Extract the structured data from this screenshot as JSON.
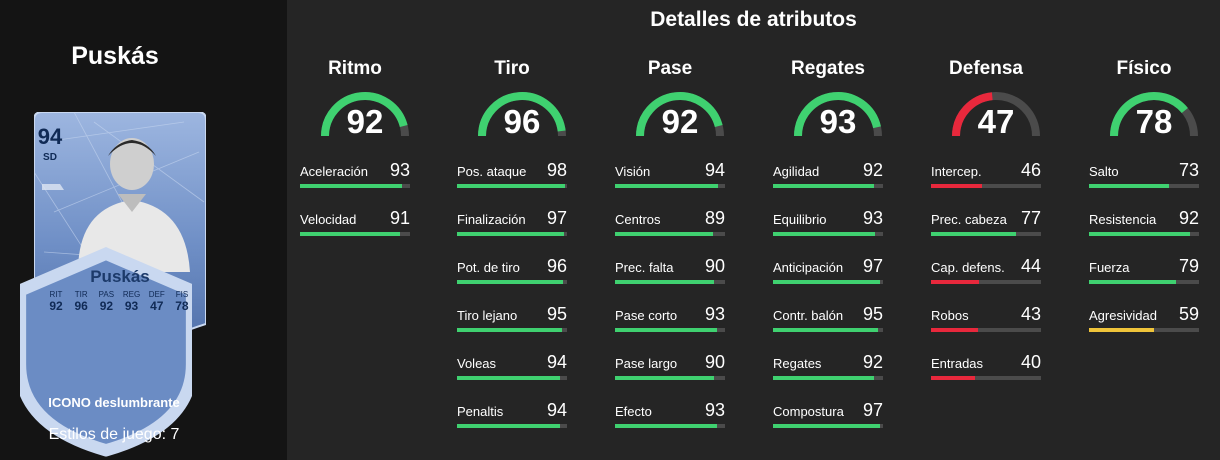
{
  "player": {
    "name": "Puskás",
    "card_rating": "94",
    "card_position": "SD",
    "card_name": "Puskás",
    "card_stats": [
      {
        "label": "RIT",
        "value": "92"
      },
      {
        "label": "TIR",
        "value": "96"
      },
      {
        "label": "PAS",
        "value": "92"
      },
      {
        "label": "REG",
        "value": "93"
      },
      {
        "label": "DEF",
        "value": "47"
      },
      {
        "label": "FIS",
        "value": "78"
      }
    ],
    "card_type": "ICONO deslumbrante",
    "play_styles": "Estilos de juego: 7"
  },
  "title": "Detalles de atributos",
  "colors": {
    "green": "#3fd170",
    "red": "#e8283c",
    "yellow": "#efc43a",
    "track": "#4b4b4b",
    "card_blue": "#7f9fd1"
  },
  "categories": [
    {
      "name": "Ritmo",
      "value": 92,
      "color": "green",
      "stats": [
        {
          "name": "Aceleración",
          "value": 93,
          "color": "green"
        },
        {
          "name": "Velocidad",
          "value": 91,
          "color": "green"
        }
      ]
    },
    {
      "name": "Tiro",
      "value": 96,
      "color": "green",
      "stats": [
        {
          "name": "Pos. ataque",
          "value": 98,
          "color": "green"
        },
        {
          "name": "Finalización",
          "value": 97,
          "color": "green"
        },
        {
          "name": "Pot. de tiro",
          "value": 96,
          "color": "green"
        },
        {
          "name": "Tiro lejano",
          "value": 95,
          "color": "green"
        },
        {
          "name": "Voleas",
          "value": 94,
          "color": "green"
        },
        {
          "name": "Penaltis",
          "value": 94,
          "color": "green"
        }
      ]
    },
    {
      "name": "Pase",
      "value": 92,
      "color": "green",
      "stats": [
        {
          "name": "Visión",
          "value": 94,
          "color": "green"
        },
        {
          "name": "Centros",
          "value": 89,
          "color": "green"
        },
        {
          "name": "Prec. falta",
          "value": 90,
          "color": "green"
        },
        {
          "name": "Pase corto",
          "value": 93,
          "color": "green"
        },
        {
          "name": "Pase largo",
          "value": 90,
          "color": "green"
        },
        {
          "name": "Efecto",
          "value": 93,
          "color": "green"
        }
      ]
    },
    {
      "name": "Regates",
      "value": 93,
      "color": "green",
      "stats": [
        {
          "name": "Agilidad",
          "value": 92,
          "color": "green"
        },
        {
          "name": "Equilibrio",
          "value": 93,
          "color": "green"
        },
        {
          "name": "Anticipación",
          "value": 97,
          "color": "green"
        },
        {
          "name": "Contr. balón",
          "value": 95,
          "color": "green"
        },
        {
          "name": "Regates",
          "value": 92,
          "color": "green"
        },
        {
          "name": "Compostura",
          "value": 97,
          "color": "green"
        }
      ]
    },
    {
      "name": "Defensa",
      "value": 47,
      "color": "red",
      "stats": [
        {
          "name": "Intercep.",
          "value": 46,
          "color": "red"
        },
        {
          "name": "Prec. cabeza",
          "value": 77,
          "color": "green"
        },
        {
          "name": "Cap. defens.",
          "value": 44,
          "color": "red"
        },
        {
          "name": "Robos",
          "value": 43,
          "color": "red"
        },
        {
          "name": "Entradas",
          "value": 40,
          "color": "red"
        }
      ]
    },
    {
      "name": "Físico",
      "value": 78,
      "color": "green",
      "stats": [
        {
          "name": "Salto",
          "value": 73,
          "color": "green"
        },
        {
          "name": "Resistencia",
          "value": 92,
          "color": "green"
        },
        {
          "name": "Fuerza",
          "value": 79,
          "color": "green"
        },
        {
          "name": "Agresividad",
          "value": 59,
          "color": "yellow"
        }
      ]
    }
  ]
}
